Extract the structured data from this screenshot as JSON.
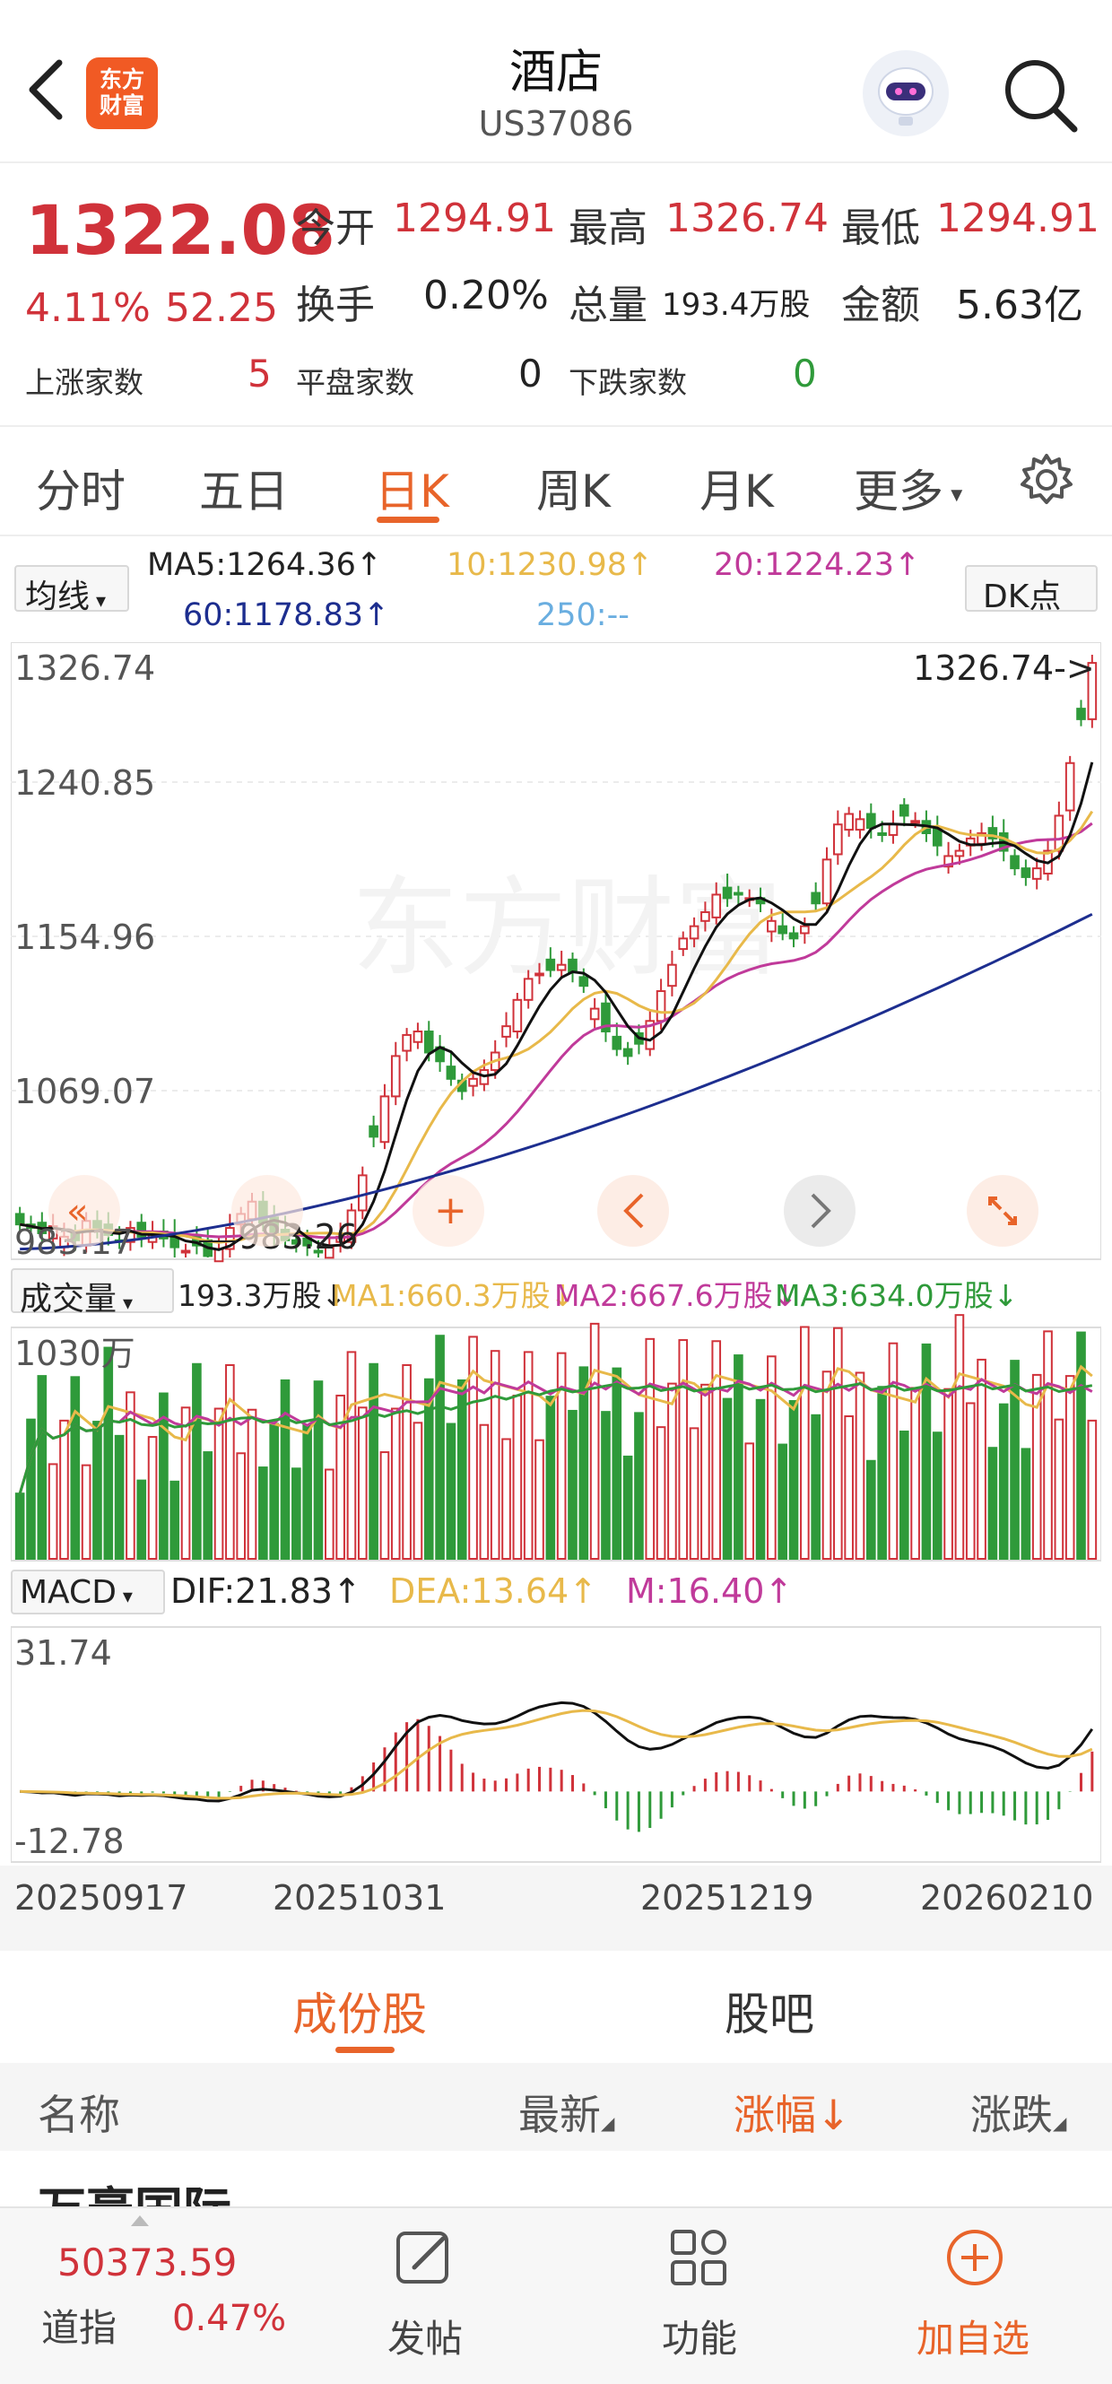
{
  "header": {
    "logo_text": "东方财富",
    "title": "酒店",
    "code": "US37086"
  },
  "quote": {
    "price": "1322.08",
    "change_pct": "4.11%",
    "change": "52.25",
    "open_label": "今开",
    "open": "1294.91",
    "high_label": "最高",
    "high": "1326.74",
    "low_label": "最低",
    "low": "1294.91",
    "turnover_label": "换手",
    "turnover": "0.20%",
    "volume_label": "总量",
    "volume": "193.4万股",
    "amount_label": "金额",
    "amount": "5.63亿",
    "up_label": "上涨家数",
    "up": "5",
    "flat_label": "平盘家数",
    "flat": "0",
    "down_label": "下跌家数",
    "down": "0"
  },
  "tabs": [
    "分时",
    "五日",
    "日K",
    "周K",
    "月K",
    "更多"
  ],
  "active_tab": "日K",
  "ma": {
    "selector": "均线",
    "ma5": "MA5:1264.36↑",
    "ma10": "10:1230.98↑",
    "ma20": "20:1224.23↑",
    "ma60": "60:1178.83↑",
    "ma250": "250:--",
    "dk": "DK点"
  },
  "volume_ind": {
    "selector": "成交量",
    "vol": "193.3万股↓",
    "ma1": "MA1:660.3万股↓",
    "ma2": "MA2:667.6万股↓",
    "ma3": "MA3:634.0万股↓",
    "max_label": "1030万"
  },
  "macd_ind": {
    "selector": "MACD",
    "dif": "DIF:21.83↑",
    "dea": "DEA:13.64↑",
    "m": "M:16.40↑",
    "max_label": "31.74",
    "min_label": "-12.78"
  },
  "chart_data": {
    "type": "candlestick",
    "y_ticks": [
      "1326.74",
      "1240.85",
      "1154.96",
      "1069.07",
      "983.17"
    ],
    "ylim": [
      983.17,
      1326.74
    ],
    "high_marker": "1326.74->",
    "low_marker": "983.26",
    "x_ticks": [
      "20250917",
      "20251031",
      "20251219",
      "20260210"
    ],
    "watermark": "东方财富",
    "closes": [
      1002,
      1000,
      997,
      1001,
      995,
      993,
      1004,
      999,
      996,
      992,
      1000,
      995,
      998,
      994,
      989,
      987,
      990,
      984,
      988,
      1000,
      1008,
      1015,
      1003,
      996,
      993,
      991,
      990,
      986,
      989,
      995,
      1010,
      1030,
      1052,
      1075,
      1098,
      1110,
      1112,
      1100,
      1095,
      1085,
      1078,
      1085,
      1090,
      1100,
      1115,
      1130,
      1142,
      1145,
      1147,
      1150,
      1146,
      1138,
      1125,
      1112,
      1102,
      1098,
      1105,
      1118,
      1135,
      1150,
      1165,
      1172,
      1180,
      1190,
      1188,
      1190,
      1188,
      1185,
      1175,
      1168,
      1165,
      1172,
      1185,
      1210,
      1230,
      1236,
      1233,
      1228,
      1224,
      1230,
      1235,
      1232,
      1225,
      1218,
      1212,
      1215,
      1222,
      1225,
      1222,
      1215,
      1205,
      1200,
      1205,
      1215,
      1235,
      1265,
      1290,
      1322.08
    ],
    "volume_max_label": "1030万",
    "macd_range": [
      -12.78,
      31.74
    ]
  },
  "lower": {
    "tabs": [
      "成份股",
      "股吧"
    ],
    "active": "成份股",
    "columns": [
      "名称",
      "最新",
      "涨幅↓",
      "涨跌"
    ],
    "first_row_name": "万豪国际"
  },
  "bottom_bar": {
    "index_value": "50373.59",
    "index_name": "道指",
    "index_pct": "0.47%",
    "post": "发帖",
    "function": "功能",
    "add": "加自选"
  },
  "colors": {
    "up": "#d0323a",
    "down": "#2f9a3a",
    "accent": "#e8642a",
    "ma5": "#111111",
    "ma10": "#e8b94a",
    "ma20": "#c03a9a",
    "ma60": "#1d2e8f"
  }
}
